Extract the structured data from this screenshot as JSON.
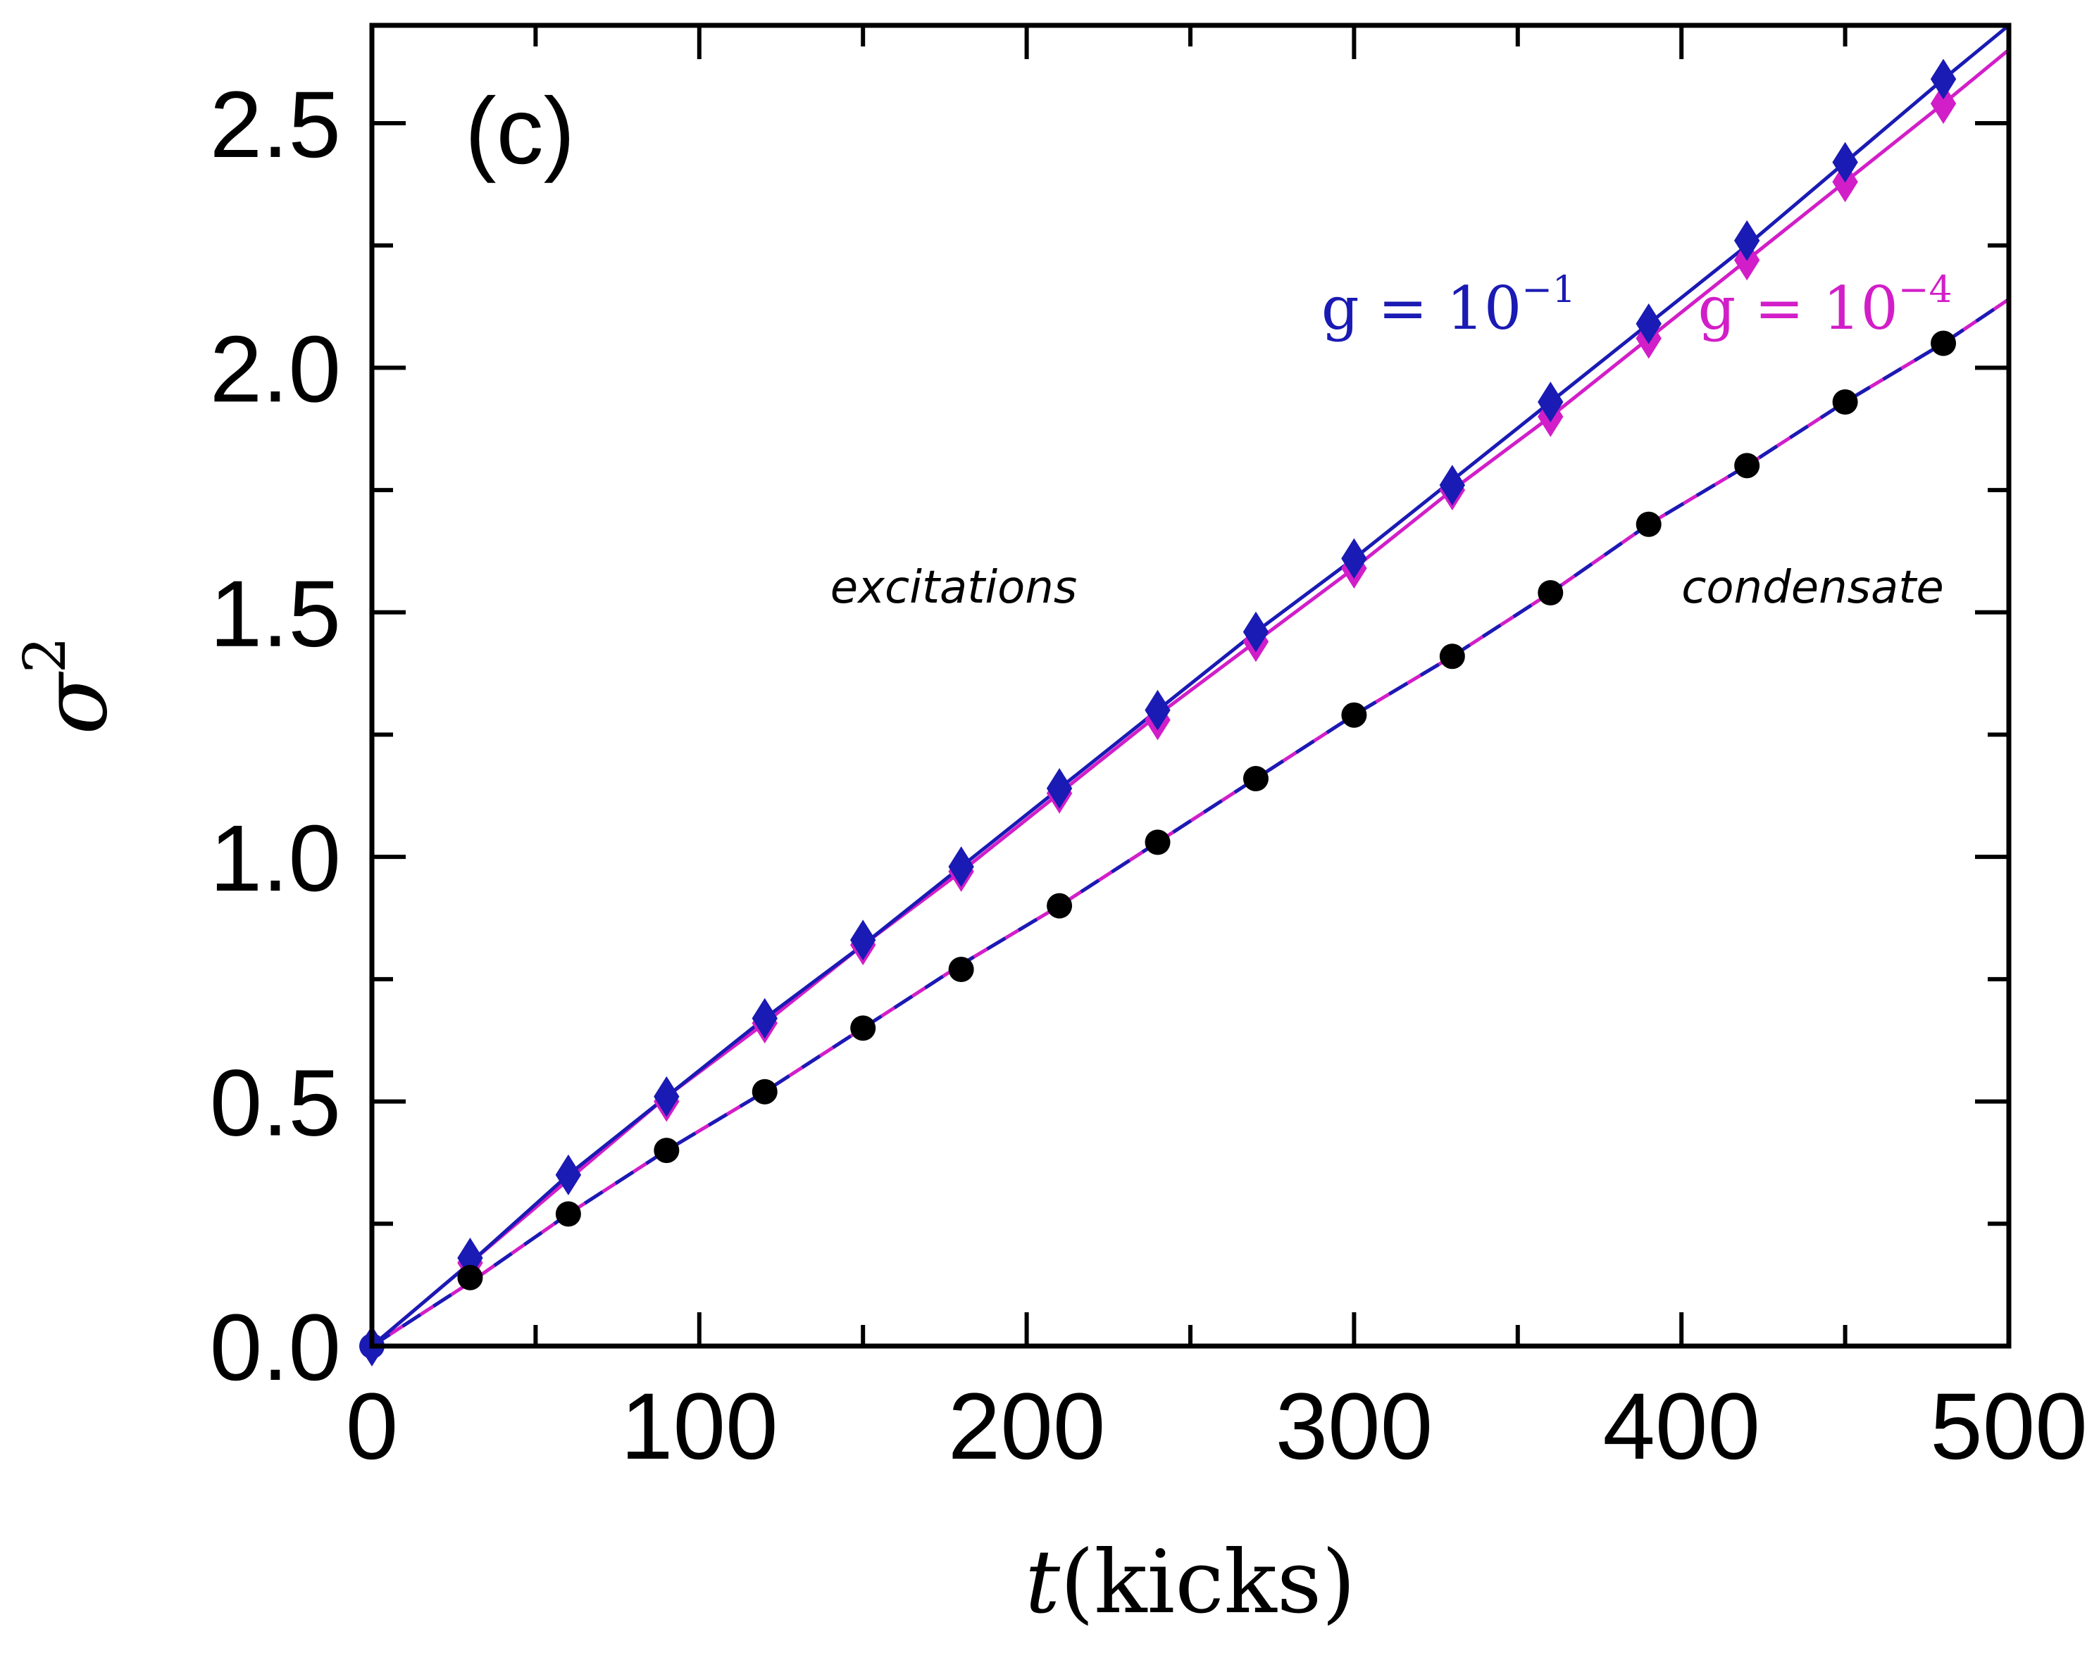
{
  "chart_data": {
    "type": "line",
    "panel_label": "(c)",
    "xlabel": {
      "var": "t",
      "unit": "(kicks)"
    },
    "ylabel": {
      "base": "σ",
      "exp": "2"
    },
    "xlim": [
      0,
      500
    ],
    "ylim": [
      0,
      2.7
    ],
    "xticks": [
      0,
      100,
      200,
      300,
      400,
      500
    ],
    "xtick_labels": [
      "0",
      "100",
      "200",
      "300",
      "400",
      "500"
    ],
    "yticks": [
      0.0,
      0.5,
      1.0,
      1.5,
      2.0,
      2.5
    ],
    "ytick_labels": [
      "0.0",
      "0.5",
      "1.0",
      "1.5",
      "2.0",
      "2.5"
    ],
    "series": [
      {
        "name": "excitations, g = 10^-1",
        "group": "excitations",
        "color": "#1a1ab4",
        "marker": "diamond",
        "x": [
          0,
          30,
          60,
          90,
          120,
          150,
          180,
          210,
          240,
          270,
          300,
          330,
          360,
          390,
          420,
          450,
          480,
          500
        ],
        "values": [
          0.0,
          0.17,
          0.35,
          0.51,
          0.67,
          0.82,
          0.98,
          1.14,
          1.3,
          1.46,
          1.61,
          1.77,
          1.93,
          2.09,
          2.25,
          2.42,
          2.59,
          2.7
        ]
      },
      {
        "name": "excitations, g = 10^-4",
        "group": "excitations",
        "color": "#d21ec8",
        "marker": "diamond",
        "x": [
          0,
          30,
          60,
          90,
          120,
          150,
          180,
          210,
          240,
          270,
          300,
          330,
          360,
          390,
          420,
          450,
          480,
          500
        ],
        "values": [
          0.0,
          0.17,
          0.34,
          0.51,
          0.66,
          0.82,
          0.97,
          1.13,
          1.29,
          1.44,
          1.59,
          1.75,
          1.9,
          2.06,
          2.22,
          2.38,
          2.54,
          2.65
        ]
      },
      {
        "name": "condensate, g = 10^-1",
        "group": "condensate",
        "color": "#1a1ab4",
        "marker": "none",
        "x": [
          0,
          30,
          60,
          90,
          120,
          150,
          180,
          210,
          240,
          270,
          300,
          330,
          360,
          390,
          420,
          450,
          480,
          500
        ],
        "values": [
          0.0,
          0.13,
          0.27,
          0.4,
          0.52,
          0.65,
          0.78,
          0.9,
          1.03,
          1.16,
          1.29,
          1.41,
          1.54,
          1.68,
          1.8,
          1.93,
          2.05,
          2.14
        ]
      },
      {
        "name": "condensate, g = 10^-4",
        "group": "condensate",
        "color": "#d21ec8",
        "marker": "circle",
        "x": [
          0,
          30,
          60,
          90,
          120,
          150,
          180,
          210,
          240,
          270,
          300,
          330,
          360,
          390,
          420,
          450,
          480,
          500
        ],
        "values": [
          0.0,
          0.13,
          0.27,
          0.4,
          0.52,
          0.65,
          0.78,
          0.9,
          1.03,
          1.16,
          1.29,
          1.41,
          1.54,
          1.68,
          1.8,
          1.93,
          2.05,
          2.14
        ]
      }
    ],
    "marker_points": {
      "excitations_blue": {
        "x": [
          0,
          30,
          60,
          90,
          120,
          150,
          180,
          210,
          240,
          270,
          300,
          330,
          360,
          390,
          420,
          450,
          480
        ],
        "values": [
          0.0,
          0.18,
          0.35,
          0.51,
          0.67,
          0.83,
          0.98,
          1.14,
          1.3,
          1.46,
          1.61,
          1.76,
          1.93,
          2.09,
          2.26,
          2.42,
          2.59
        ]
      },
      "excitations_magenta": {
        "x": [
          0,
          30,
          60,
          90,
          120,
          150,
          180,
          210,
          240,
          270,
          300,
          330,
          360,
          390,
          420,
          450,
          480
        ],
        "values": [
          0.0,
          0.17,
          0.35,
          0.5,
          0.66,
          0.82,
          0.97,
          1.13,
          1.28,
          1.44,
          1.59,
          1.75,
          1.9,
          2.06,
          2.22,
          2.38,
          2.54
        ]
      },
      "condensate_black": {
        "x": [
          0,
          30,
          60,
          90,
          120,
          150,
          180,
          210,
          240,
          270,
          300,
          330,
          360,
          390,
          420,
          450,
          480
        ],
        "values": [
          0.0,
          0.14,
          0.27,
          0.4,
          0.52,
          0.65,
          0.77,
          0.9,
          1.03,
          1.16,
          1.29,
          1.41,
          1.54,
          1.68,
          1.8,
          1.93,
          2.05
        ]
      }
    },
    "annotations": [
      {
        "id": "excitations",
        "text": "excitations",
        "x": 140,
        "y": 1.52
      },
      {
        "id": "condensate",
        "text": "condensate",
        "x": 400,
        "y": 1.52
      },
      {
        "id": "g1",
        "base": "g = 10",
        "exp": "−1",
        "color": "#1a1ab4",
        "x": 290,
        "y": 2.08
      },
      {
        "id": "g4",
        "base": "g = 10",
        "exp": "−4",
        "color": "#d21ec8",
        "x": 405,
        "y": 2.08
      }
    ],
    "colors": {
      "blue": "#1a1ab4",
      "magenta": "#d21ec8",
      "black": "#000000"
    }
  }
}
